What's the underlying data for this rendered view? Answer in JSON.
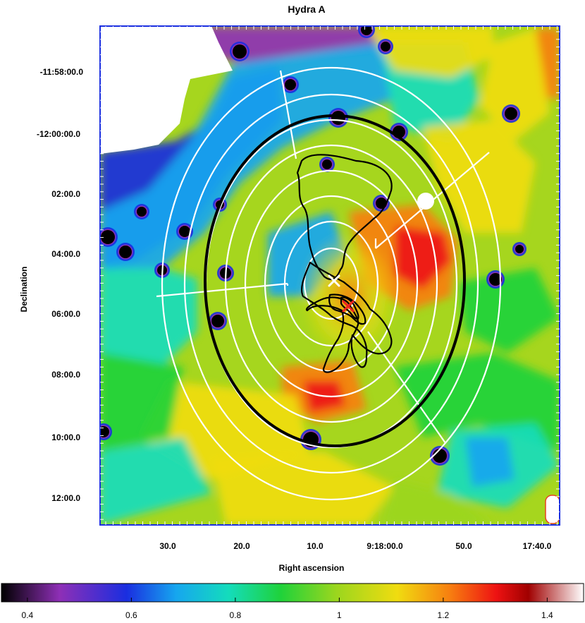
{
  "chart_data": {
    "type": "heatmap",
    "title": "Hydra A",
    "xlabel": "Right ascension",
    "ylabel": "Declination",
    "x_ticks": [
      "30.0",
      "20.0",
      "10.0",
      "9:18:00.0",
      "50.0",
      "17:40.0"
    ],
    "y_ticks": [
      "-11:58:00.0",
      "-12:00:00.0",
      "02:00.0",
      "04:00.0",
      "06:00.0",
      "08:00.0",
      "10:00.0",
      "12:00.0"
    ],
    "colorbar": {
      "ticks": [
        "0.4",
        "0.6",
        "0.8",
        "1",
        "1.2",
        "1.4"
      ],
      "tick_values": [
        0.4,
        0.6,
        0.8,
        1.0,
        1.2,
        1.4
      ],
      "range": [
        0.35,
        1.47
      ],
      "colormap": [
        "#000000",
        "#8e2fb6",
        "#1a2ee0",
        "#16a6ef",
        "#14dcbc",
        "#1fd23a",
        "#9bd61e",
        "#f0dc10",
        "#f77f10",
        "#ee1212",
        "#a00000",
        "#ffffff"
      ]
    },
    "colors": {
      "annulus_grid": "#ffffff",
      "outer_ellipse": "#000000",
      "radio_contours": "#000000",
      "center_marker_red": "#ee2222",
      "center_marker_white": "#ffffff"
    },
    "annotations": [
      "white elliptical annuli with radial sector dividers",
      "thick black ellipse",
      "black radio contours",
      "red x marker",
      "white x marker"
    ]
  }
}
